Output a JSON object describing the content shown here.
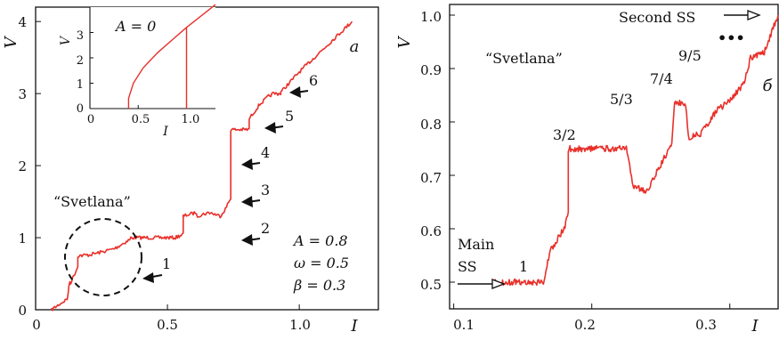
{
  "accent_color": "#e8302a",
  "chart_data": [
    {
      "type": "line",
      "panel_label": "a",
      "xlabel": "I",
      "ylabel": "V",
      "xlim": [
        0,
        1.3
      ],
      "ylim": [
        0,
        4.2
      ],
      "x_ticks": [
        "0",
        "0.5",
        "1.0"
      ],
      "y_ticks": [
        "0",
        "1",
        "2",
        "3",
        "4"
      ],
      "grid": false,
      "series": [
        {
          "color": "#e8302a",
          "x": [
            0.06,
            0.12,
            0.13,
            0.13,
            0.16,
            0.16,
            0.2,
            0.25,
            0.3,
            0.36,
            0.36,
            0.53,
            0.56,
            0.56,
            0.61,
            0.61,
            0.66,
            0.7,
            0.72,
            0.74,
            0.74,
            0.81,
            0.81,
            0.85,
            0.88,
            0.9,
            0.93,
            0.93,
            1.0,
            1.2
          ],
          "y": [
            0.0,
            0.15,
            0.4,
            0.35,
            0.6,
            0.75,
            0.76,
            0.8,
            0.85,
            0.98,
            1.0,
            1.0,
            1.05,
            1.3,
            1.35,
            1.3,
            1.35,
            1.3,
            1.4,
            1.55,
            2.5,
            2.5,
            2.65,
            2.85,
            2.95,
            3.0,
            3.0,
            3.02,
            3.3,
            4.0
          ]
        }
      ],
      "annotations": [
        "“Svetlana”",
        "1",
        "2",
        "3",
        "4",
        "5",
        "6",
        "A = 0.8",
        "ω = 0.5",
        "β = 0.3"
      ],
      "inset": {
        "label": "A = 0",
        "xlabel": "I",
        "ylabel": "V",
        "xlim": [
          0,
          1.3
        ],
        "ylim": [
          0,
          4
        ],
        "x_ticks": [
          "0",
          "0.5",
          "1.0"
        ],
        "y_ticks": [
          "0",
          "1",
          "2",
          "3"
        ],
        "x": [
          0.4,
          0.4,
          0.45,
          0.55,
          0.7,
          0.85,
          1.0,
          1.0,
          1.0,
          1.3
        ],
        "y": [
          0.0,
          0.4,
          1.0,
          1.6,
          2.2,
          2.7,
          3.2,
          0.0,
          3.2,
          4.1
        ]
      }
    },
    {
      "type": "line",
      "panel_label": "б",
      "xlabel": "I",
      "ylabel": "V",
      "xlim": [
        0.097,
        0.335
      ],
      "ylim": [
        0.45,
        1.02
      ],
      "x_ticks": [
        "0.1",
        "0.2",
        "0.3"
      ],
      "y_ticks": [
        "0.5",
        "0.6",
        "0.7",
        "0.8",
        "0.9",
        "1.0"
      ],
      "grid": false,
      "series": [
        {
          "color": "#e8302a",
          "x": [
            0.13,
            0.145,
            0.165,
            0.17,
            0.175,
            0.18,
            0.183,
            0.183,
            0.225,
            0.23,
            0.24,
            0.25,
            0.258,
            0.26,
            0.268,
            0.27,
            0.28,
            0.29,
            0.3,
            0.31,
            0.315,
            0.325,
            0.335
          ],
          "y": [
            0.5,
            0.5,
            0.5,
            0.56,
            0.58,
            0.6,
            0.63,
            0.75,
            0.75,
            0.68,
            0.67,
            0.72,
            0.76,
            0.835,
            0.835,
            0.77,
            0.78,
            0.82,
            0.84,
            0.87,
            0.92,
            0.93,
            1.0
          ]
        }
      ],
      "annotations": [
        "“Svetlana”",
        "Main",
        "SS",
        "1",
        "3/2",
        "5/3",
        "7/4",
        "9/5",
        "•••",
        "Second SS"
      ]
    }
  ]
}
